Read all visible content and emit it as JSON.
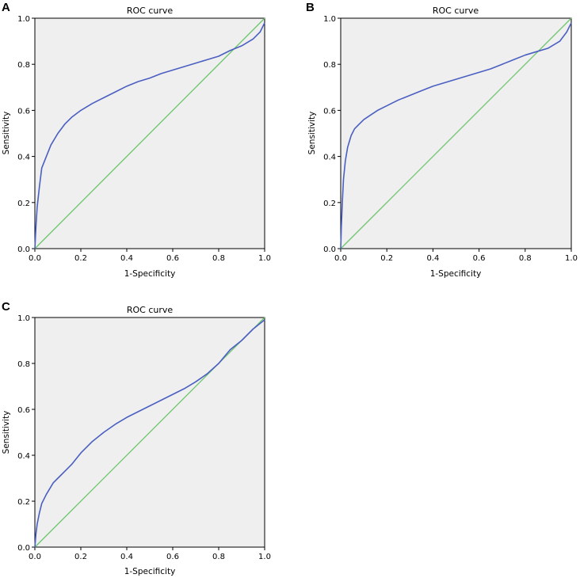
{
  "chart_data": [
    {
      "panel": "A",
      "type": "line",
      "title": "ROC curve",
      "xlabel": "1-Specificity",
      "ylabel": "Sensitivity",
      "xlim": [
        0,
        1
      ],
      "ylim": [
        0,
        1
      ],
      "xticks": [
        "0.0",
        "0.2",
        "0.4",
        "0.6",
        "0.8",
        "1.0"
      ],
      "yticks": [
        "0.0",
        "0.2",
        "0.4",
        "0.6",
        "0.8",
        "1.0"
      ],
      "series": [
        {
          "name": "ROC",
          "color": "#4a5fc1",
          "x": [
            0,
            0.005,
            0.01,
            0.02,
            0.03,
            0.05,
            0.07,
            0.1,
            0.13,
            0.16,
            0.2,
            0.25,
            0.3,
            0.35,
            0.4,
            0.45,
            0.5,
            0.55,
            0.6,
            0.65,
            0.7,
            0.75,
            0.8,
            0.85,
            0.9,
            0.95,
            0.98,
            1.0
          ],
          "y": [
            0,
            0.1,
            0.18,
            0.27,
            0.35,
            0.4,
            0.45,
            0.5,
            0.54,
            0.57,
            0.6,
            0.63,
            0.655,
            0.68,
            0.705,
            0.725,
            0.74,
            0.76,
            0.775,
            0.79,
            0.805,
            0.82,
            0.835,
            0.86,
            0.88,
            0.91,
            0.94,
            0.98
          ]
        },
        {
          "name": "Reference",
          "color": "#6cc56c",
          "x": [
            0,
            1
          ],
          "y": [
            0,
            1
          ]
        }
      ]
    },
    {
      "panel": "B",
      "type": "line",
      "title": "ROC curve",
      "xlabel": "1-Specificity",
      "ylabel": "Sensitivity",
      "xlim": [
        0,
        1
      ],
      "ylim": [
        0,
        1
      ],
      "xticks": [
        "0.0",
        "0.2",
        "0.4",
        "0.6",
        "0.8",
        "1.0"
      ],
      "yticks": [
        "0.0",
        "0.2",
        "0.4",
        "0.6",
        "0.8",
        "1.0"
      ],
      "series": [
        {
          "name": "ROC",
          "color": "#4a5fc1",
          "x": [
            0,
            0.003,
            0.007,
            0.012,
            0.02,
            0.03,
            0.045,
            0.06,
            0.08,
            0.1,
            0.13,
            0.16,
            0.2,
            0.25,
            0.3,
            0.35,
            0.4,
            0.45,
            0.5,
            0.55,
            0.6,
            0.65,
            0.7,
            0.75,
            0.8,
            0.85,
            0.9,
            0.95,
            0.98,
            1.0
          ],
          "y": [
            0,
            0.1,
            0.2,
            0.3,
            0.38,
            0.44,
            0.49,
            0.52,
            0.54,
            0.56,
            0.58,
            0.6,
            0.62,
            0.645,
            0.665,
            0.685,
            0.705,
            0.72,
            0.735,
            0.75,
            0.765,
            0.78,
            0.8,
            0.82,
            0.84,
            0.855,
            0.87,
            0.9,
            0.94,
            0.98
          ]
        },
        {
          "name": "Reference",
          "color": "#6cc56c",
          "x": [
            0,
            1
          ],
          "y": [
            0,
            1
          ]
        }
      ]
    },
    {
      "panel": "C",
      "type": "line",
      "title": "ROC curve",
      "xlabel": "1-Specificity",
      "ylabel": "Sensitivity",
      "xlim": [
        0,
        1
      ],
      "ylim": [
        0,
        1
      ],
      "xticks": [
        "0.0",
        "0.2",
        "0.4",
        "0.6",
        "0.8",
        "1.0"
      ],
      "yticks": [
        "0.0",
        "0.2",
        "0.4",
        "0.6",
        "0.8",
        "1.0"
      ],
      "series": [
        {
          "name": "ROC",
          "color": "#4a5fc1",
          "x": [
            0,
            0.005,
            0.01,
            0.02,
            0.03,
            0.05,
            0.08,
            0.1,
            0.13,
            0.16,
            0.2,
            0.25,
            0.3,
            0.35,
            0.4,
            0.45,
            0.5,
            0.55,
            0.6,
            0.65,
            0.7,
            0.75,
            0.8,
            0.85,
            0.9,
            0.95,
            1.0
          ],
          "y": [
            0,
            0.06,
            0.1,
            0.15,
            0.19,
            0.23,
            0.28,
            0.3,
            0.33,
            0.36,
            0.41,
            0.46,
            0.5,
            0.535,
            0.565,
            0.59,
            0.615,
            0.64,
            0.665,
            0.69,
            0.72,
            0.755,
            0.8,
            0.86,
            0.9,
            0.95,
            0.99
          ]
        },
        {
          "name": "Reference",
          "color": "#6cc56c",
          "x": [
            0,
            1
          ],
          "y": [
            0,
            1
          ]
        }
      ]
    }
  ]
}
